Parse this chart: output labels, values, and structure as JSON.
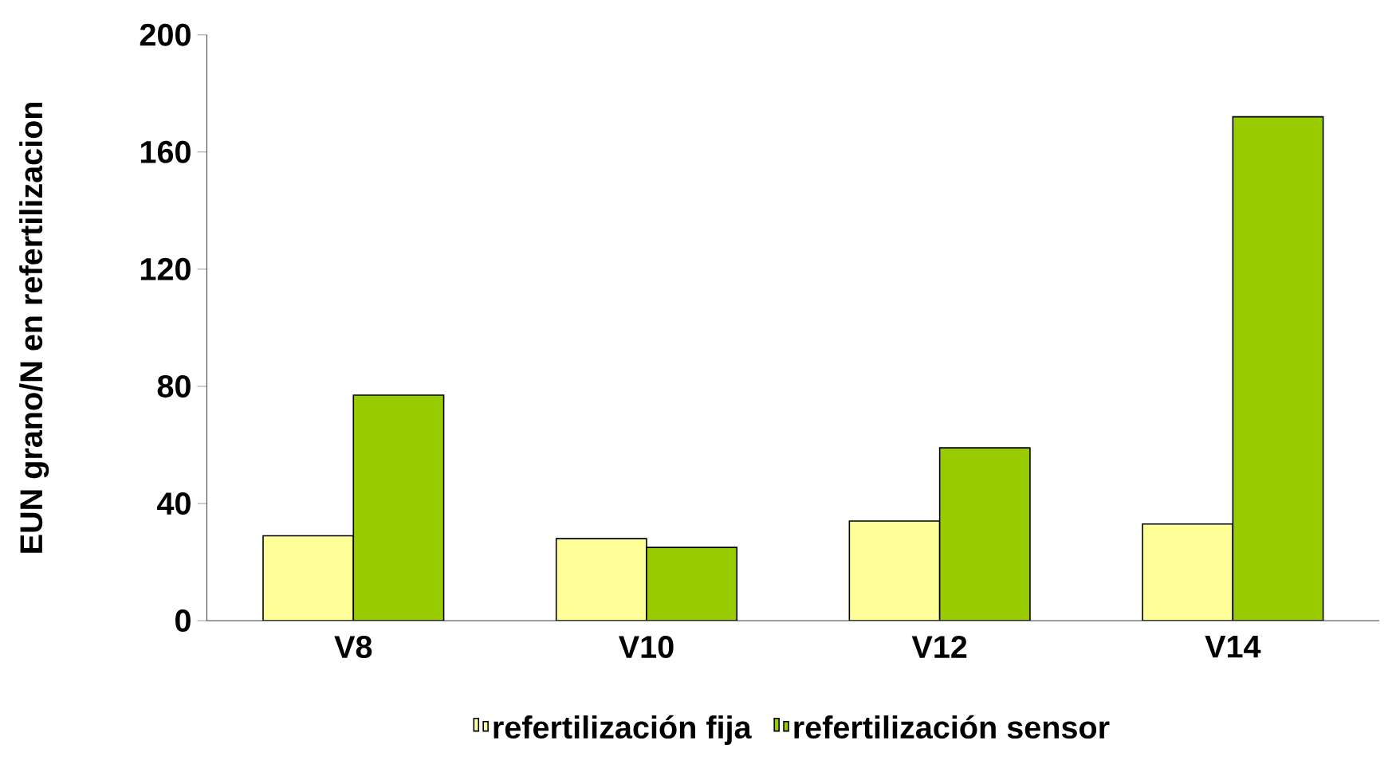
{
  "chart_data": {
    "type": "bar",
    "ylabel": "EUN grano/N en refertilizacion",
    "categories": [
      "V8",
      "V10",
      "V12",
      "V14"
    ],
    "series": [
      {
        "name": "refertilización fija",
        "color": "#ffff99",
        "values": [
          29,
          28,
          34,
          33
        ]
      },
      {
        "name": "refertilización sensor",
        "color": "#99cc00",
        "values": [
          77,
          25,
          59,
          172
        ]
      }
    ],
    "ylim": [
      0,
      200
    ],
    "yticks": [
      0,
      40,
      80,
      120,
      160,
      200
    ],
    "grid": false,
    "legend": "bottom"
  }
}
